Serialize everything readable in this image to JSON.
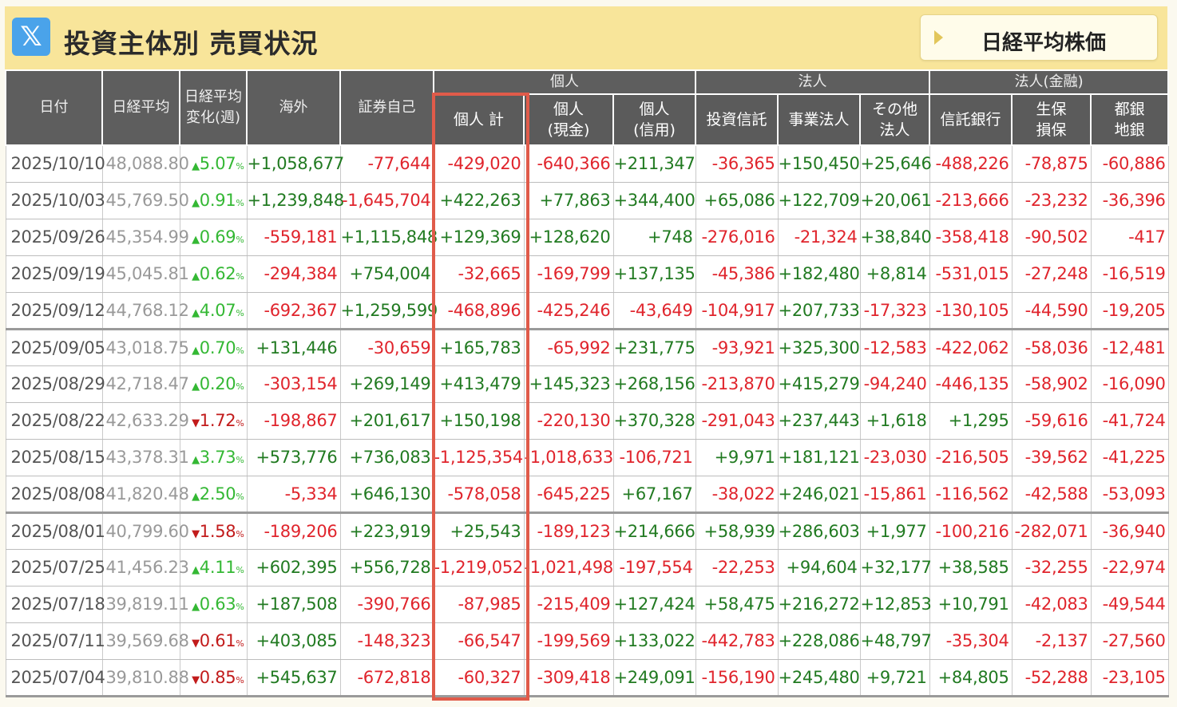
{
  "header": {
    "x_icon": "x-logo-icon",
    "title": "投資主体別 売買状況",
    "nikkei_button": "日経平均株価"
  },
  "groups": [
    "個人",
    "法人",
    "法人(金融)"
  ],
  "columns": {
    "date": "日付",
    "nikkei": "日経平均",
    "change": "日経平均\n変化(週)",
    "overseas": "海外",
    "securities": "証券自己",
    "indiv_total": "個人 計",
    "indiv_cash": "個人\n(現金)",
    "indiv_credit": "個人\n(信用)",
    "invest_trust": "投資信託",
    "business": "事業法人",
    "other_corp": "その他\n法人",
    "trust_bank": "信託銀行",
    "insurance": "生保\n損保",
    "city_bank": "都銀\n地銀"
  },
  "colors": {
    "positive": "#217a21",
    "negative": "#e0242c",
    "up": "#34b834",
    "down": "#c21b1b",
    "highlight": "#e05b4a"
  },
  "rows": [
    {
      "date": "2025/10/10",
      "nikkei": "48,088.80",
      "dir": "up",
      "chg": "5.07",
      "v": [
        "+1,058,677",
        "-77,644",
        "-429,020",
        "-640,366",
        "+211,347",
        "-36,365",
        "+150,450",
        "+25,646",
        "-488,226",
        "-78,875",
        "-60,886"
      ]
    },
    {
      "date": "2025/10/03",
      "nikkei": "45,769.50",
      "dir": "up",
      "chg": "0.91",
      "v": [
        "+1,239,848",
        "-1,645,704",
        "+422,263",
        "+77,863",
        "+344,400",
        "+65,086",
        "+122,709",
        "+20,061",
        "-213,666",
        "-23,232",
        "-36,396"
      ]
    },
    {
      "date": "2025/09/26",
      "nikkei": "45,354.99",
      "dir": "up",
      "chg": "0.69",
      "v": [
        "-559,181",
        "+1,115,848",
        "+129,369",
        "+128,620",
        "+748",
        "-276,016",
        "-21,324",
        "+38,840",
        "-358,418",
        "-90,502",
        "-417"
      ]
    },
    {
      "date": "2025/09/19",
      "nikkei": "45,045.81",
      "dir": "up",
      "chg": "0.62",
      "v": [
        "-294,384",
        "+754,004",
        "-32,665",
        "-169,799",
        "+137,135",
        "-45,386",
        "+182,480",
        "+8,814",
        "-531,015",
        "-27,248",
        "-16,519"
      ]
    },
    {
      "date": "2025/09/12",
      "nikkei": "44,768.12",
      "dir": "up",
      "chg": "4.07",
      "v": [
        "-692,367",
        "+1,259,599",
        "-468,896",
        "-425,246",
        "-43,649",
        "-104,917",
        "+207,733",
        "-17,323",
        "-130,105",
        "-44,590",
        "-19,205"
      ]
    },
    {
      "date": "2025/09/05",
      "nikkei": "43,018.75",
      "dir": "up",
      "chg": "0.70",
      "v": [
        "+131,446",
        "-30,659",
        "+165,783",
        "-65,992",
        "+231,775",
        "-93,921",
        "+325,300",
        "-12,583",
        "-422,062",
        "-58,036",
        "-12,481"
      ]
    },
    {
      "date": "2025/08/29",
      "nikkei": "42,718.47",
      "dir": "up",
      "chg": "0.20",
      "v": [
        "-303,154",
        "+269,149",
        "+413,479",
        "+145,323",
        "+268,156",
        "-213,870",
        "+415,279",
        "-94,240",
        "-446,135",
        "-58,902",
        "-16,090"
      ]
    },
    {
      "date": "2025/08/22",
      "nikkei": "42,633.29",
      "dir": "down",
      "chg": "1.72",
      "v": [
        "-198,867",
        "+201,617",
        "+150,198",
        "-220,130",
        "+370,328",
        "-291,043",
        "+237,443",
        "+1,618",
        "+1,295",
        "-59,616",
        "-41,724"
      ]
    },
    {
      "date": "2025/08/15",
      "nikkei": "43,378.31",
      "dir": "up",
      "chg": "3.73",
      "v": [
        "+573,776",
        "+736,083",
        "-1,125,354",
        "-1,018,633",
        "-106,721",
        "+9,971",
        "+181,121",
        "-23,030",
        "-216,505",
        "-39,562",
        "-41,225"
      ]
    },
    {
      "date": "2025/08/08",
      "nikkei": "41,820.48",
      "dir": "up",
      "chg": "2.50",
      "v": [
        "-5,334",
        "+646,130",
        "-578,058",
        "-645,225",
        "+67,167",
        "-38,022",
        "+246,021",
        "-15,861",
        "-116,562",
        "-42,588",
        "-53,093"
      ]
    },
    {
      "date": "2025/08/01",
      "nikkei": "40,799.60",
      "dir": "down",
      "chg": "1.58",
      "v": [
        "-189,206",
        "+223,919",
        "+25,543",
        "-189,123",
        "+214,666",
        "+58,939",
        "+286,603",
        "+1,977",
        "-100,216",
        "-282,071",
        "-36,940"
      ]
    },
    {
      "date": "2025/07/25",
      "nikkei": "41,456.23",
      "dir": "up",
      "chg": "4.11",
      "v": [
        "+602,395",
        "+556,728",
        "-1,219,052",
        "-1,021,498",
        "-197,554",
        "-22,253",
        "+94,604",
        "+32,177",
        "+38,585",
        "-32,255",
        "-22,974"
      ]
    },
    {
      "date": "2025/07/18",
      "nikkei": "39,819.11",
      "dir": "up",
      "chg": "0.63",
      "v": [
        "+187,508",
        "-390,766",
        "-87,985",
        "-215,409",
        "+127,424",
        "+58,475",
        "+216,272",
        "+12,853",
        "+10,791",
        "-42,083",
        "-49,544"
      ]
    },
    {
      "date": "2025/07/11",
      "nikkei": "39,569.68",
      "dir": "down",
      "chg": "0.61",
      "v": [
        "+403,085",
        "-148,323",
        "-66,547",
        "-199,569",
        "+133,022",
        "-442,783",
        "+228,086",
        "+48,797",
        "-35,304",
        "-2,137",
        "-27,560"
      ]
    },
    {
      "date": "2025/07/04",
      "nikkei": "39,810.88",
      "dir": "down",
      "chg": "0.85",
      "v": [
        "+545,637",
        "-672,818",
        "-60,327",
        "-309,418",
        "+249,091",
        "-156,190",
        "+245,480",
        "+9,721",
        "+84,805",
        "-52,288",
        "-23,105"
      ]
    }
  ],
  "separator_after_rows": [
    4,
    9,
    14
  ],
  "pct_unit": "%"
}
